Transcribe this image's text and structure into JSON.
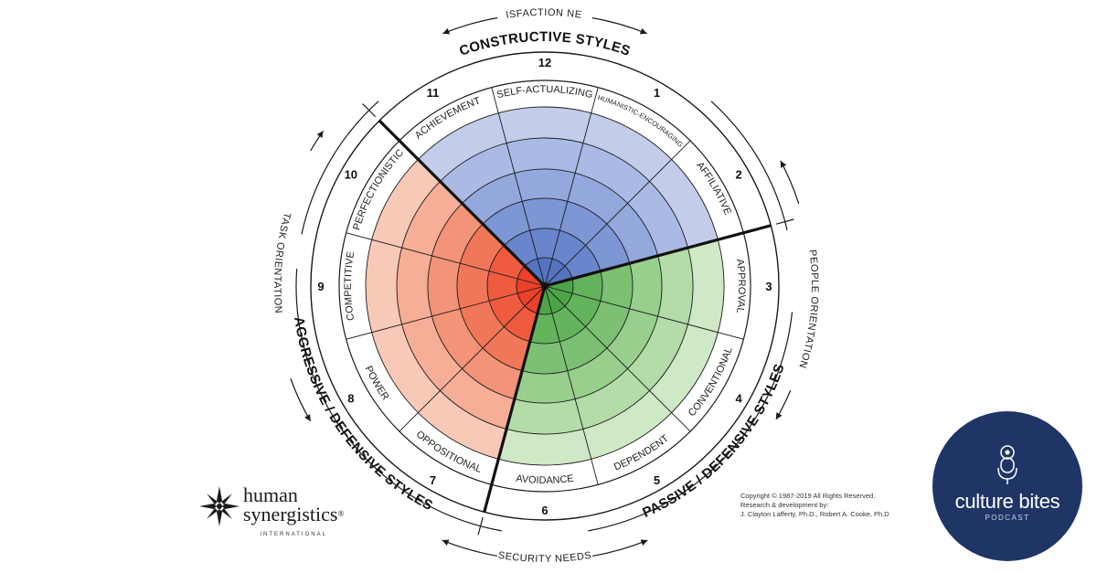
{
  "titles": {
    "constructive": "CONSTRUCTIVE STYLES",
    "passive": "PASSIVE / DEFENSIVE STYLES",
    "aggressive": "AGGRESSIVE / DEFENSIVE STYLES"
  },
  "needs": {
    "satisfaction": "SATISFACTION NEEDS",
    "security": "SECURITY NEEDS",
    "people": "PEOPLE ORIENTATION",
    "task": "TASK ORIENTATION"
  },
  "segments": [
    {
      "num": "1",
      "label": "HUMANISTIC-ENCOURAGING",
      "cluster": "constructive"
    },
    {
      "num": "2",
      "label": "AFFILIATIVE",
      "cluster": "constructive"
    },
    {
      "num": "3",
      "label": "APPROVAL",
      "cluster": "passive"
    },
    {
      "num": "4",
      "label": "CONVENTIONAL",
      "cluster": "passive"
    },
    {
      "num": "5",
      "label": "DEPENDENT",
      "cluster": "passive"
    },
    {
      "num": "6",
      "label": "AVOIDANCE",
      "cluster": "passive"
    },
    {
      "num": "7",
      "label": "OPPOSITIONAL",
      "cluster": "aggressive"
    },
    {
      "num": "8",
      "label": "POWER",
      "cluster": "aggressive"
    },
    {
      "num": "9",
      "label": "COMPETITIVE",
      "cluster": "aggressive"
    },
    {
      "num": "10",
      "label": "PERFECTIONISTIC",
      "cluster": "aggressive"
    },
    {
      "num": "11",
      "label": "ACHIEVEMENT",
      "cluster": "constructive"
    },
    {
      "num": "12",
      "label": "SELF-ACTUALIZING",
      "cluster": "constructive"
    }
  ],
  "colors": {
    "constructive": [
      "#5574c0",
      "#6985cb",
      "#7d96d4",
      "#93a8dc",
      "#aabae4",
      "#c3cdea"
    ],
    "passive": [
      "#4ba547",
      "#62b35c",
      "#7cc173",
      "#98cf8d",
      "#b3dca8",
      "#cfe8c6"
    ],
    "aggressive": [
      "#eb4029",
      "#ee5b3e",
      "#f17759",
      "#f39377",
      "#f6ae97",
      "#f9c9b7"
    ]
  },
  "logo": {
    "line1": "human",
    "line2": "synergistics",
    "reg": "®",
    "sub": "INTERNATIONAL",
    "icon": "compass-star-icon"
  },
  "copyright": [
    "Copyright © 1987-2019  All Rights Reserved.",
    "Research & development by:",
    "J. Clayton Lafferty, Ph.D., Robert A. Cooke, Ph.D"
  ],
  "podcast": {
    "title": "culture bites",
    "subtitle": "PODCAST",
    "icon": "microphone-icon",
    "bg_color": "#1f3566"
  }
}
